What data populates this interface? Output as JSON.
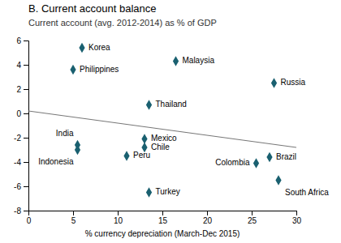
{
  "chart_data": {
    "type": "scatter",
    "title": "B. Current account balance",
    "subtitle": "Current account (avg. 2012-2014) as % of GDP",
    "x_label": "% currency depreciation (March-Dec 2015)",
    "xlim": [
      0,
      30
    ],
    "ylim": [
      -8,
      6
    ],
    "xticks": [
      0,
      5,
      10,
      15,
      20,
      25,
      30
    ],
    "yticks": [
      -8,
      -6,
      -4,
      -2,
      0,
      2,
      4,
      6
    ],
    "series": [
      {
        "type": "scatter",
        "color": "#1a6070",
        "marker": "diamond",
        "x": [
          6.0,
          5.0,
          16.5,
          27.5,
          13.5,
          5.5,
          5.5,
          13.0,
          13.0,
          11.0,
          13.5,
          27.0,
          25.5,
          28.0
        ],
        "values": [
          5.4,
          3.6,
          4.3,
          2.5,
          0.7,
          -2.6,
          -3.0,
          -2.1,
          -2.8,
          -3.5,
          -6.5,
          -3.6,
          -4.1,
          -5.5
        ],
        "labels": [
          "Korea",
          "Philippines",
          "Malaysia",
          "Russia",
          "Thailand",
          "India",
          "Indonesia",
          "Mexico",
          "Chile",
          "Peru",
          "Turkey",
          "Brazil",
          "Colombia",
          "South Africa"
        ]
      },
      {
        "type": "line",
        "color": "#777777",
        "x": [
          0,
          30
        ],
        "values": [
          0.2,
          -2.8
        ]
      }
    ]
  }
}
